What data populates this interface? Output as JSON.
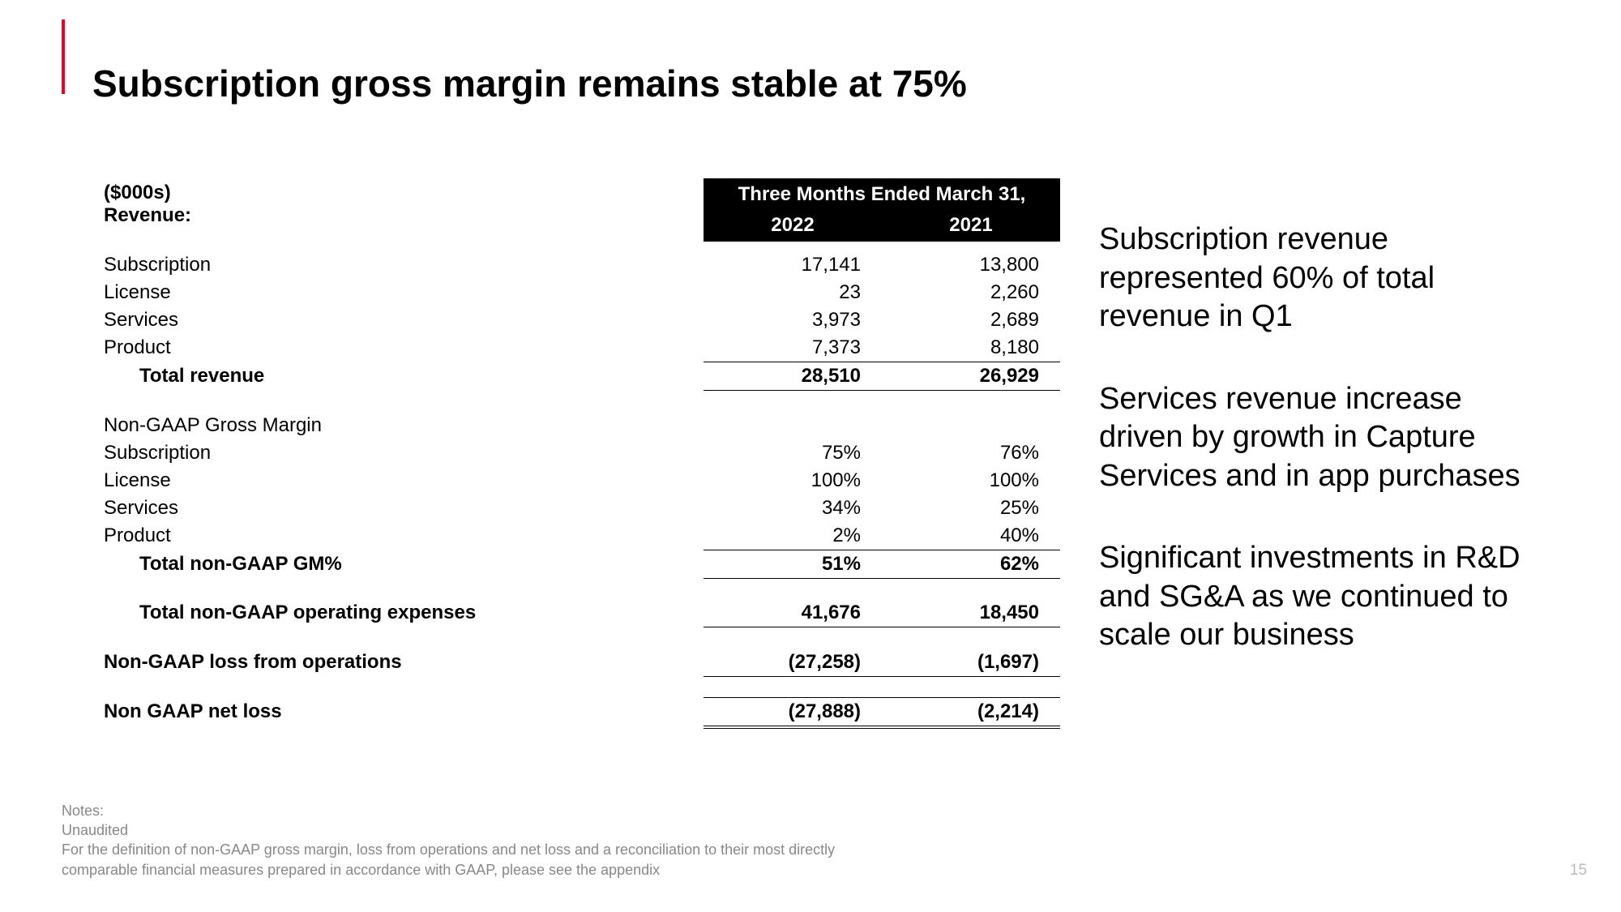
{
  "accent_color": "#c8102e",
  "title": "Subscription gross margin remains stable at 75%",
  "table": {
    "unitsLabel": "($000s)",
    "revenueLabel": "Revenue:",
    "periodHeader": "Three Months Ended March 31,",
    "year1": "2022",
    "year2": "2021",
    "revenue": {
      "subscription": {
        "label": "Subscription",
        "v1": "17,141",
        "v2": "13,800"
      },
      "license": {
        "label": "License",
        "v1": "23",
        "v2": "2,260"
      },
      "services": {
        "label": "Services",
        "v1": "3,973",
        "v2": "2,689"
      },
      "product": {
        "label": "Product",
        "v1": "7,373",
        "v2": "8,180"
      },
      "total": {
        "label": "Total revenue",
        "v1": "28,510",
        "v2": "26,929"
      }
    },
    "gmLabel": "Non-GAAP Gross Margin",
    "gm": {
      "subscription": {
        "label": "Subscription",
        "v1": "75%",
        "v2": "76%"
      },
      "license": {
        "label": "License",
        "v1": "100%",
        "v2": "100%"
      },
      "services": {
        "label": "Services",
        "v1": "34%",
        "v2": "25%"
      },
      "product": {
        "label": "Product",
        "v1": "2%",
        "v2": "40%"
      },
      "total": {
        "label": "Total non-GAAP GM%",
        "v1": "51%",
        "v2": "62%"
      }
    },
    "opex": {
      "label": "Total non-GAAP operating expenses",
      "v1": "41,676",
      "v2": "18,450"
    },
    "lossOps": {
      "label": "Non-GAAP loss from operations",
      "v1": "(27,258)",
      "v2": "(1,697)"
    },
    "netLoss": {
      "label": "Non GAAP net loss",
      "v1": "(27,888)",
      "v2": "(2,214)"
    }
  },
  "callouts": {
    "p1": "Subscription revenue represented 60% of total revenue in Q1",
    "p2": "Services revenue increase driven by growth in Capture Services and in app purchases",
    "p3": "Significant investments in R&D and SG&A as we continued to scale our business"
  },
  "notes": {
    "heading": "Notes:",
    "line1": "Unaudited",
    "line2": "For the definition of non-GAAP gross margin, loss from operations and net loss and a reconciliation to their most directly comparable financial measures prepared in accordance with GAAP,  please see the appendix"
  },
  "pageNumber": "15"
}
